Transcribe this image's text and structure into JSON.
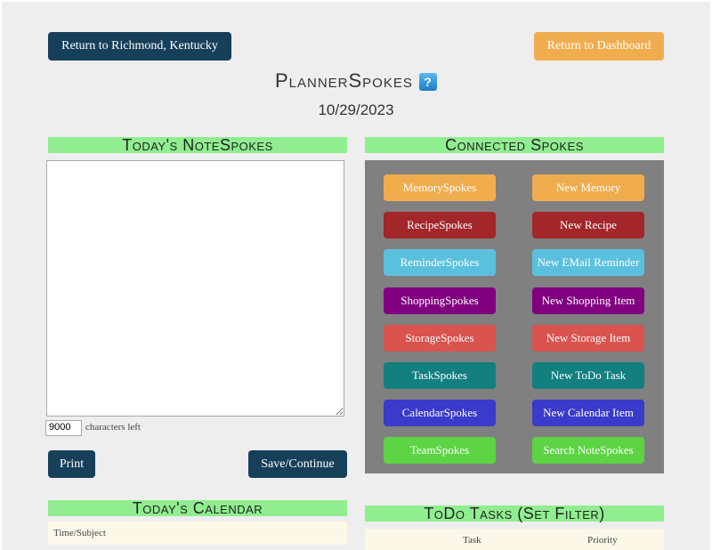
{
  "header": {
    "return_city": "Return to Richmond, Kentucky",
    "return_dashboard": "Return to Dashboard",
    "title": "PlannerSpokes",
    "help_icon": "?",
    "date": "10/29/2023"
  },
  "notes": {
    "heading": "Today's NoteSpokes",
    "text": "",
    "chars_left": "9000",
    "chars_label": "characters left",
    "print": "Print",
    "save": "Save/Continue"
  },
  "connected": {
    "heading": "Connected Spokes",
    "rows": [
      {
        "left": "MemorySpokes",
        "right": "New Memory",
        "color": "#f0ad4e"
      },
      {
        "left": "RecipeSpokes",
        "right": "New Recipe",
        "color": "#a3262a"
      },
      {
        "left": "ReminderSpokes",
        "right": "New EMail Reminder",
        "color": "#5bc0de"
      },
      {
        "left": "ShoppingSpokes",
        "right": "New Shopping Item",
        "color": "#800080"
      },
      {
        "left": "StorageSpokes",
        "right": "New Storage Item",
        "color": "#d9534f"
      },
      {
        "left": "TaskSpokes",
        "right": "New ToDo Task",
        "color": "#137f7f"
      },
      {
        "left": "CalendarSpokes",
        "right": "New Calendar Item",
        "color": "#3a3acb"
      },
      {
        "left": "TeamSpokes",
        "right": "Search NoteSpokes",
        "color": "#5cd444"
      }
    ]
  },
  "calendar": {
    "heading": "Today's Calendar",
    "column": "Time/Subject"
  },
  "todo": {
    "heading": "ToDo Tasks (Set Filter)",
    "columns": [
      "Task",
      "Priority"
    ]
  }
}
